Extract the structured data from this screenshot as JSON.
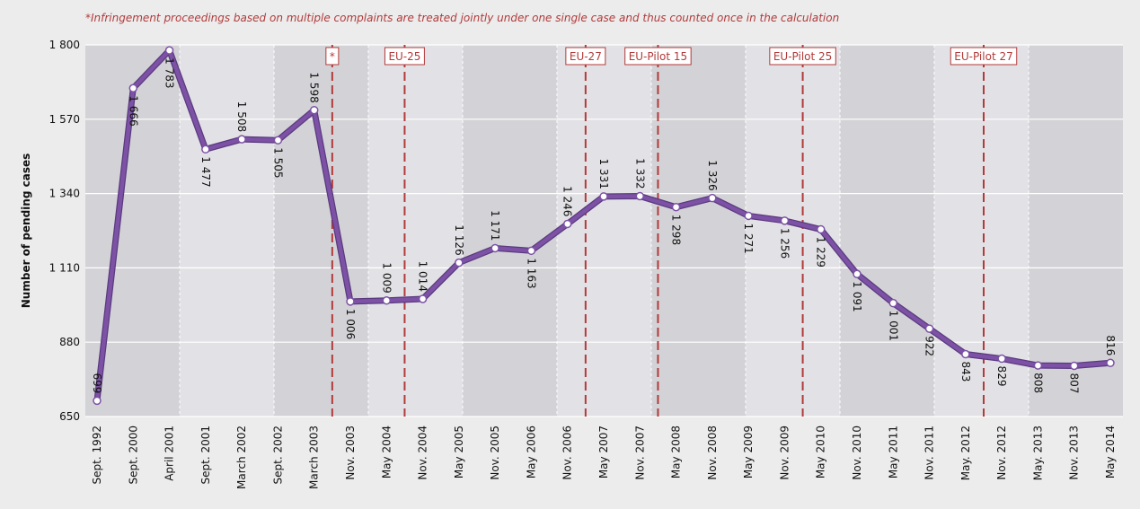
{
  "chart_data": {
    "type": "line",
    "note": "*Infringement proceedings based on multiple complaints are treated jointly under one single case and thus counted once in the calculation",
    "y_label": "Number of pending cases",
    "categories": [
      "Sept. 1992",
      "Sept. 2000",
      "April 2001",
      "Sept. 2001",
      "March 2002",
      "Sept. 2002",
      "March 2003",
      "Nov. 2003",
      "May 2004",
      "Nov. 2004",
      "May 2005",
      "Nov. 2005",
      "May 2006",
      "Nov. 2006",
      "May 2007",
      "Nov. 2007",
      "May 2008",
      "Nov. 2008",
      "May 2009",
      "Nov. 2009",
      "May 2010",
      "Nov. 2010",
      "May 2011",
      "Nov. 2011",
      "May. 2012",
      "Nov. 2012",
      "May. 2013",
      "Nov. 2013",
      "May 2014"
    ],
    "values": [
      699,
      1666,
      1783,
      1477,
      1508,
      1505,
      1598,
      1006,
      1009,
      1014,
      1126,
      1171,
      1163,
      1246,
      1331,
      1332,
      1298,
      1326,
      1271,
      1256,
      1229,
      1091,
      1001,
      922,
      843,
      829,
      808,
      807,
      816
    ],
    "value_labels": [
      "699",
      "1 666",
      "1 783",
      "1 477",
      "1 508",
      "1 505",
      "1 598",
      "1 006",
      "1 009",
      "1 014",
      "1 126",
      "1 171",
      "1 163",
      "1 246",
      "1 331",
      "1 332",
      "1 298",
      "1 326",
      "1 271",
      "1 256",
      "1 229",
      "1 091",
      "1 001",
      "922",
      "843",
      "829",
      "808",
      "807",
      "816"
    ],
    "color": "#7d52a6",
    "ylim": [
      650,
      1800
    ],
    "yticks": [
      650,
      880,
      {
        "value": 1110,
        "label": "1 110"
      },
      {
        "value": 1340,
        "label": "1 340"
      },
      {
        "value": 1570,
        "label": "1 570"
      },
      {
        "value": 1800,
        "label": "1 800"
      }
    ],
    "grid": true,
    "markers": [
      {
        "label": "*",
        "x": 6.5
      },
      {
        "label": "EU-25",
        "x": 8.5
      },
      {
        "label": "EU-27",
        "x": 13.5
      },
      {
        "label": "EU-Pilot 15",
        "x": 15.5
      },
      {
        "label": "EU-Pilot 25",
        "x": 19.5
      },
      {
        "label": "EU-Pilot 27",
        "x": 24.5
      }
    ],
    "marker_color": "#b23a3a"
  }
}
